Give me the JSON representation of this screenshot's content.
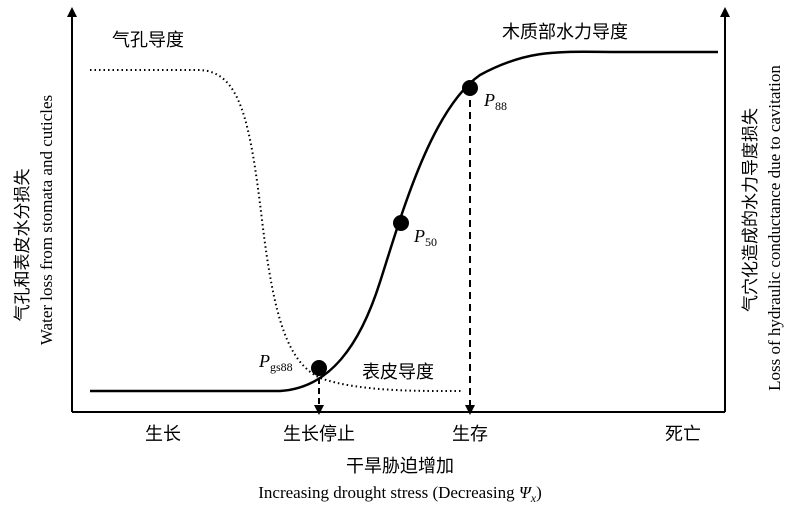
{
  "diagram": {
    "curves": {
      "stomatal": {
        "label": "气孔导度",
        "style": "dotted"
      },
      "xylem": {
        "label": "木质部水力导度",
        "style": "solid"
      },
      "cuticular": {
        "label": "表皮导度"
      }
    },
    "points": {
      "p88": {
        "symbol": "P",
        "sub": "88"
      },
      "p50": {
        "symbol": "P",
        "sub": "50"
      },
      "pgs88": {
        "symbol": "P",
        "sub": "gs88"
      }
    },
    "stages": [
      "生长",
      "生长停止",
      "生存",
      "死亡"
    ],
    "x_axis": {
      "label_cn": "干旱胁迫增加",
      "label_en_prefix": "Increasing drought stress (Decreasing ",
      "label_en_symbol": "Ψ",
      "label_en_sub": "x",
      "label_en_suffix": ")"
    },
    "left_axis": {
      "label_cn": "气孔和表皮水分损失",
      "label_en": "Water loss from stomata and cuticles"
    },
    "right_axis": {
      "label_cn": "气穴化造成的水力导度损失",
      "label_en": "Loss of hydraulic conductance due to cavitation"
    }
  }
}
